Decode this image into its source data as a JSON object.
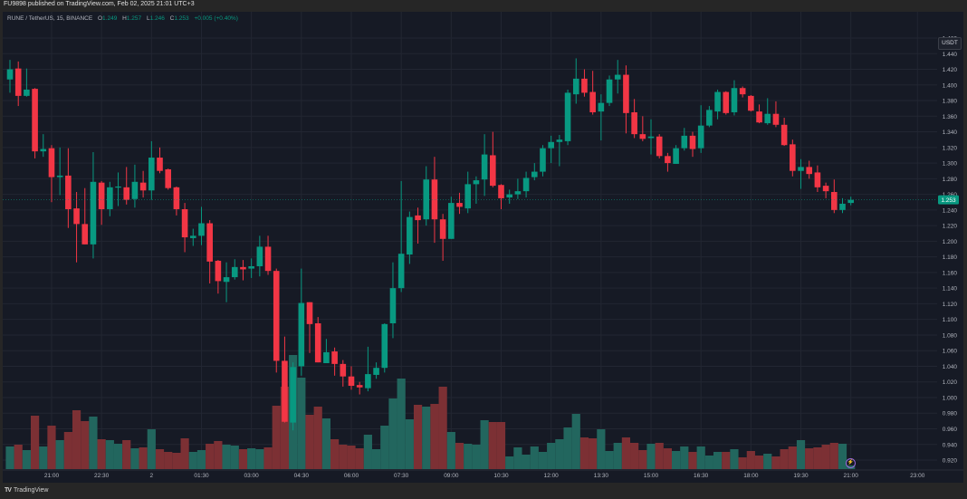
{
  "publish_bar": "FU9898 published on TradingView.com, Feb 02, 2025 21:01 UTC+3",
  "legend": {
    "symbol": "RUNE / TetherUS, 15, BINANCE",
    "o_label": "O",
    "o": "1.249",
    "h_label": "H",
    "h": "1.257",
    "l_label": "L",
    "l": "1.246",
    "c_label": "C",
    "c": "1.253",
    "change": "+0.005 (+0.40%)"
  },
  "currency_button": "USDT",
  "footer_brand": "TradingView",
  "icons": {
    "footer_logo": "tradingview-logo-icon",
    "bolt": "lightning-icon"
  },
  "colors": {
    "up": "#089981",
    "down": "#f23645",
    "up_volume": "#22665e",
    "down_volume": "#7c3034",
    "background": "#161a25"
  },
  "chart_data": {
    "type": "candlestick",
    "symbol": "RUNE / TetherUS",
    "interval": "15",
    "exchange": "BINANCE",
    "ylim": [
      0.91,
      1.47
    ],
    "grid": true,
    "current_price": "1.253",
    "y_ticks": [
      "1.460",
      "1.440",
      "1.420",
      "1.400",
      "1.380",
      "1.360",
      "1.340",
      "1.320",
      "1.300",
      "1.280",
      "1.260",
      "1.240",
      "1.220",
      "1.200",
      "1.180",
      "1.160",
      "1.140",
      "1.120",
      "1.100",
      "1.080",
      "1.060",
      "1.040",
      "1.020",
      "1.000",
      "0.980",
      "0.960",
      "0.940",
      "0.920"
    ],
    "x_ticks": [
      "21:00",
      "22:30",
      "2",
      "01:30",
      "03:00",
      "04:30",
      "06:00",
      "07:30",
      "09:00",
      "10:30",
      "12:00",
      "13:30",
      "15:00",
      "16:30",
      "18:00",
      "19:30",
      "21:00",
      "23:00"
    ],
    "ohlc": [
      [
        1.407,
        1.432,
        1.39,
        1.42
      ],
      [
        1.421,
        1.43,
        1.373,
        1.386
      ],
      [
        1.386,
        1.421,
        1.385,
        1.394
      ],
      [
        1.395,
        1.396,
        1.306,
        1.315
      ],
      [
        1.315,
        1.337,
        1.308,
        1.318
      ],
      [
        1.319,
        1.323,
        1.25,
        1.282
      ],
      [
        1.282,
        1.32,
        1.259,
        1.284
      ],
      [
        1.284,
        1.319,
        1.217,
        1.241
      ],
      [
        1.242,
        1.263,
        1.173,
        1.222
      ],
      [
        1.222,
        1.268,
        1.196,
        1.196
      ],
      [
        1.196,
        1.314,
        1.178,
        1.276
      ],
      [
        1.275,
        1.277,
        1.221,
        1.241
      ],
      [
        1.241,
        1.276,
        1.232,
        1.269
      ],
      [
        1.269,
        1.288,
        1.245,
        1.27
      ],
      [
        1.269,
        1.295,
        1.247,
        1.253
      ],
      [
        1.254,
        1.298,
        1.243,
        1.276
      ],
      [
        1.275,
        1.29,
        1.256,
        1.265
      ],
      [
        1.265,
        1.328,
        1.253,
        1.307
      ],
      [
        1.307,
        1.32,
        1.287,
        1.29
      ],
      [
        1.292,
        1.293,
        1.266,
        1.268
      ],
      [
        1.269,
        1.27,
        1.233,
        1.241
      ],
      [
        1.241,
        1.249,
        1.186,
        1.205
      ],
      [
        1.204,
        1.216,
        1.194,
        1.207
      ],
      [
        1.207,
        1.244,
        1.195,
        1.223
      ],
      [
        1.223,
        1.227,
        1.146,
        1.174
      ],
      [
        1.175,
        1.176,
        1.133,
        1.149
      ],
      [
        1.148,
        1.173,
        1.122,
        1.154
      ],
      [
        1.154,
        1.177,
        1.151,
        1.167
      ],
      [
        1.167,
        1.176,
        1.15,
        1.164
      ],
      [
        1.165,
        1.178,
        1.153,
        1.168
      ],
      [
        1.168,
        1.207,
        1.155,
        1.193
      ],
      [
        1.193,
        1.207,
        1.157,
        1.162
      ],
      [
        1.162,
        1.165,
        1.032,
        1.047
      ],
      [
        1.047,
        1.078,
        0.968,
        0.969
      ],
      [
        0.968,
        1.045,
        0.958,
        1.039
      ],
      [
        1.04,
        1.165,
        1.028,
        1.121
      ],
      [
        1.122,
        1.122,
        1.057,
        1.094
      ],
      [
        1.095,
        1.103,
        1.045,
        1.045
      ],
      [
        1.044,
        1.075,
        1.044,
        1.058
      ],
      [
        1.059,
        1.064,
        1.028,
        1.043
      ],
      [
        1.043,
        1.048,
        1.014,
        1.027
      ],
      [
        1.027,
        1.04,
        1.01,
        1.015
      ],
      [
        1.016,
        1.02,
        1.004,
        1.013
      ],
      [
        1.012,
        1.065,
        1.008,
        1.03
      ],
      [
        1.029,
        1.045,
        1.024,
        1.038
      ],
      [
        1.038,
        1.095,
        1.032,
        1.094
      ],
      [
        1.095,
        1.173,
        1.076,
        1.14
      ],
      [
        1.14,
        1.277,
        1.135,
        1.184
      ],
      [
        1.183,
        1.238,
        1.171,
        1.231
      ],
      [
        1.233,
        1.243,
        1.197,
        1.227
      ],
      [
        1.228,
        1.296,
        1.22,
        1.279
      ],
      [
        1.279,
        1.308,
        1.198,
        1.228
      ],
      [
        1.228,
        1.235,
        1.175,
        1.203
      ],
      [
        1.203,
        1.257,
        1.203,
        1.249
      ],
      [
        1.249,
        1.262,
        1.235,
        1.244
      ],
      [
        1.242,
        1.289,
        1.236,
        1.273
      ],
      [
        1.273,
        1.283,
        1.248,
        1.278
      ],
      [
        1.279,
        1.337,
        1.258,
        1.311
      ],
      [
        1.31,
        1.34,
        1.269,
        1.271
      ],
      [
        1.272,
        1.273,
        1.241,
        1.255
      ],
      [
        1.256,
        1.266,
        1.248,
        1.26
      ],
      [
        1.26,
        1.28,
        1.254,
        1.264
      ],
      [
        1.264,
        1.289,
        1.256,
        1.281
      ],
      [
        1.282,
        1.3,
        1.278,
        1.289
      ],
      [
        1.289,
        1.323,
        1.283,
        1.319
      ],
      [
        1.319,
        1.335,
        1.3,
        1.327
      ],
      [
        1.327,
        1.336,
        1.296,
        1.33
      ],
      [
        1.328,
        1.394,
        1.323,
        1.39
      ],
      [
        1.388,
        1.434,
        1.376,
        1.408
      ],
      [
        1.408,
        1.42,
        1.385,
        1.39
      ],
      [
        1.391,
        1.418,
        1.362,
        1.365
      ],
      [
        1.366,
        1.388,
        1.329,
        1.377
      ],
      [
        1.377,
        1.412,
        1.373,
        1.407
      ],
      [
        1.407,
        1.432,
        1.389,
        1.413
      ],
      [
        1.413,
        1.425,
        1.338,
        1.364
      ],
      [
        1.365,
        1.382,
        1.332,
        1.337
      ],
      [
        1.337,
        1.36,
        1.328,
        1.331
      ],
      [
        1.332,
        1.356,
        1.311,
        1.334
      ],
      [
        1.334,
        1.337,
        1.306,
        1.309
      ],
      [
        1.309,
        1.313,
        1.289,
        1.3
      ],
      [
        1.299,
        1.323,
        1.299,
        1.319
      ],
      [
        1.319,
        1.345,
        1.316,
        1.335
      ],
      [
        1.335,
        1.34,
        1.308,
        1.318
      ],
      [
        1.319,
        1.374,
        1.313,
        1.348
      ],
      [
        1.348,
        1.373,
        1.346,
        1.368
      ],
      [
        1.366,
        1.394,
        1.356,
        1.391
      ],
      [
        1.391,
        1.392,
        1.362,
        1.364
      ],
      [
        1.365,
        1.406,
        1.361,
        1.396
      ],
      [
        1.396,
        1.398,
        1.384,
        1.388
      ],
      [
        1.386,
        1.387,
        1.366,
        1.367
      ],
      [
        1.366,
        1.375,
        1.351,
        1.352
      ],
      [
        1.351,
        1.383,
        1.349,
        1.363
      ],
      [
        1.363,
        1.379,
        1.346,
        1.349
      ],
      [
        1.349,
        1.358,
        1.322,
        1.323
      ],
      [
        1.324,
        1.33,
        1.283,
        1.29
      ],
      [
        1.29,
        1.305,
        1.267,
        1.295
      ],
      [
        1.295,
        1.303,
        1.28,
        1.286
      ],
      [
        1.288,
        1.297,
        1.263,
        1.269
      ],
      [
        1.271,
        1.275,
        1.255,
        1.264
      ],
      [
        1.263,
        1.279,
        1.236,
        1.24
      ],
      [
        1.24,
        1.255,
        1.236,
        1.248
      ],
      [
        1.249,
        1.257,
        1.246,
        1.253
      ]
    ],
    "volume_relative": [
      25,
      27,
      21,
      59,
      25,
      48,
      32,
      41,
      65,
      53,
      58,
      33,
      32,
      28,
      32,
      23,
      24,
      44,
      22,
      19,
      18,
      34,
      19,
      21,
      28,
      31,
      27,
      26,
      22,
      23,
      22,
      24,
      70,
      91,
      126,
      101,
      60,
      69,
      56,
      33,
      27,
      26,
      23,
      38,
      22,
      48,
      78,
      100,
      55,
      71,
      69,
      72,
      91,
      41,
      29,
      28,
      27,
      54,
      52,
      52,
      14,
      24,
      16,
      25,
      19,
      29,
      33,
      46,
      61,
      35,
      34,
      44,
      20,
      29,
      35,
      29,
      21,
      28,
      29,
      23,
      20,
      25,
      19,
      25,
      15,
      19,
      19,
      22,
      13,
      20,
      15,
      17,
      14,
      22,
      25,
      32,
      23,
      24,
      27,
      29,
      28,
      4
    ]
  }
}
